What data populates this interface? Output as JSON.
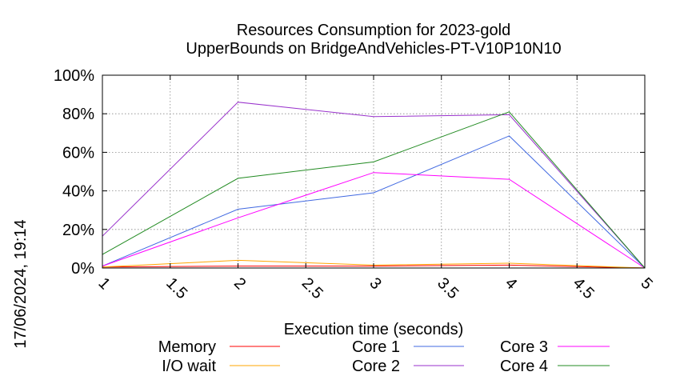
{
  "chart_data": {
    "type": "line",
    "title": "Resources Consumption for 2023-gold",
    "subtitle": "UpperBounds on BridgeAndVehicles-PT-V10P10N10",
    "xlabel": "Execution time (seconds)",
    "ylabel": "",
    "xlim": [
      1,
      5
    ],
    "ylim": [
      0,
      100
    ],
    "x_ticks": [
      "1",
      "1.5",
      "2",
      "2.5",
      "3",
      "3.5",
      "4",
      "4.5",
      "5"
    ],
    "y_ticks": [
      "0%",
      "20%",
      "40%",
      "60%",
      "80%",
      "100%"
    ],
    "grid": true,
    "legend_position": "bottom",
    "x": [
      1,
      2,
      3,
      4,
      5
    ],
    "series": [
      {
        "name": "Memory",
        "color": "#ff0000",
        "values": [
          0.5,
          1,
          1,
          1.5,
          0
        ]
      },
      {
        "name": "I/O wait",
        "color": "#ffa500",
        "values": [
          0.5,
          4,
          1.5,
          2.5,
          0
        ]
      },
      {
        "name": "Core 1",
        "color": "#4169e1",
        "values": [
          1,
          30.5,
          39,
          68.5,
          0
        ]
      },
      {
        "name": "Core 2",
        "color": "#9932cc",
        "values": [
          16.5,
          86,
          78.5,
          79.5,
          0
        ]
      },
      {
        "name": "Core 3",
        "color": "#ff00ff",
        "values": [
          1,
          26,
          49.5,
          46,
          0
        ]
      },
      {
        "name": "Core 4",
        "color": "#228b22",
        "values": [
          7,
          46.5,
          55,
          81,
          0
        ]
      }
    ]
  },
  "timestamp": "17/06/2024, 19:14"
}
